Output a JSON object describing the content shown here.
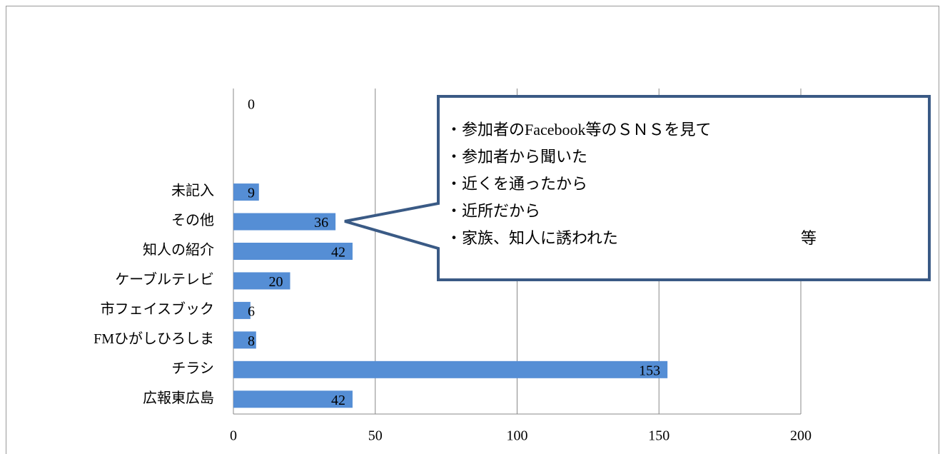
{
  "chart_data": {
    "type": "barh",
    "categories": [
      null,
      null,
      null,
      "未記入",
      "その他",
      "知人の紹介",
      "ケーブルテレビ",
      "市フェイスブック",
      "FMひがしひろしま",
      "チラシ",
      "広報東広島"
    ],
    "values": [
      0,
      null,
      null,
      9,
      36,
      42,
      20,
      6,
      8,
      153,
      42
    ],
    "color": "#558ed5",
    "xlim": [
      0,
      200
    ],
    "xticks": [
      0,
      50,
      100,
      150,
      200
    ],
    "grid": true,
    "annotations": [
      "・参加者のFacebook等のＳＮＳを見て",
      "・参加者から聞いた",
      "・近くを通ったから",
      "・近所だから",
      "・家族、知人に誘われた",
      "等"
    ]
  }
}
